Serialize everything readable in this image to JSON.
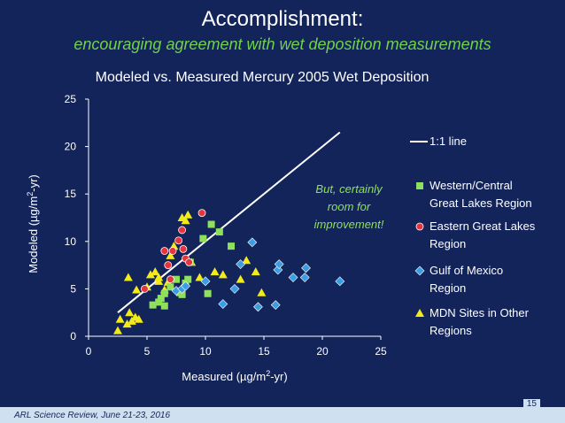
{
  "slide": {
    "title": "Accomplishment:",
    "subtitle": "encouraging agreement with wet deposition measurements",
    "footer": "ARL Science Review, June 21-23, 2016",
    "page_number": "15"
  },
  "colors": {
    "background": "#13245a",
    "subtitle": "#6fd24a",
    "western": "#8fe05a",
    "eastern": "#e8343a",
    "gulf": "#3a9ee6",
    "mdn": "#f2ea1a",
    "line": "#ffffff",
    "annotation_text": "#8fe05a"
  },
  "chart_data": {
    "type": "scatter",
    "title": "Modeled vs. Measured Mercury 2005 Wet Deposition",
    "xlabel_parts": [
      "Measured  (µg/m",
      "2",
      "-yr)"
    ],
    "ylabel_parts": [
      "Modeled (µg/m",
      "2",
      "-yr)"
    ],
    "xlim": [
      0,
      25
    ],
    "ylim": [
      0,
      25
    ],
    "xticks": [
      "0",
      "5",
      "10",
      "15",
      "20",
      "25"
    ],
    "yticks": [
      "0",
      "5",
      "10",
      "15",
      "20",
      "25"
    ],
    "grid": false,
    "legend_position": "right",
    "annotation": [
      "But, certainly",
      "room for",
      "improvement!"
    ],
    "line": {
      "name": "1:1 line",
      "x": [
        2.5,
        21.5
      ],
      "y": [
        2.5,
        21.5
      ]
    },
    "series": [
      {
        "name": [
          "Western/Central",
          "Great Lakes Region"
        ],
        "marker": "square",
        "color_key": "western",
        "points": [
          [
            5.5,
            3.3
          ],
          [
            6.0,
            3.6
          ],
          [
            6.2,
            4.0
          ],
          [
            6.5,
            3.2
          ],
          [
            7.0,
            5.2
          ],
          [
            7.5,
            6.0
          ],
          [
            7.8,
            4.6
          ],
          [
            8.0,
            4.4
          ],
          [
            8.3,
            5.6
          ],
          [
            8.5,
            6.0
          ],
          [
            6.5,
            4.5
          ],
          [
            9.8,
            10.3
          ],
          [
            10.5,
            11.8
          ],
          [
            11.2,
            11.0
          ],
          [
            12.2,
            9.5
          ],
          [
            10.2,
            4.5
          ],
          [
            8.7,
            7.8
          ]
        ]
      },
      {
        "name": [
          "Eastern Great Lakes",
          "Region"
        ],
        "marker": "circle",
        "color_key": "eastern",
        "points": [
          [
            4.8,
            5.0
          ],
          [
            6.8,
            7.5
          ],
          [
            7.2,
            9.0
          ],
          [
            7.7,
            10.1
          ],
          [
            8.0,
            11.2
          ],
          [
            8.1,
            9.2
          ],
          [
            8.3,
            8.2
          ],
          [
            8.6,
            7.8
          ],
          [
            9.7,
            13.0
          ],
          [
            6.5,
            9.0
          ],
          [
            7.0,
            6.0
          ]
        ]
      },
      {
        "name": [
          "Gulf of Mexico",
          "Region"
        ],
        "marker": "diamond",
        "color_key": "gulf",
        "points": [
          [
            7.5,
            4.8
          ],
          [
            8.0,
            5.0
          ],
          [
            8.3,
            5.3
          ],
          [
            10.0,
            5.8
          ],
          [
            11.5,
            3.4
          ],
          [
            12.5,
            5.0
          ],
          [
            13.0,
            7.6
          ],
          [
            14.0,
            9.9
          ],
          [
            14.5,
            3.1
          ],
          [
            16.0,
            3.3
          ],
          [
            16.2,
            7.0
          ],
          [
            16.3,
            7.6
          ],
          [
            17.5,
            6.2
          ],
          [
            18.5,
            6.2
          ],
          [
            18.6,
            7.2
          ],
          [
            21.5,
            5.8
          ]
        ]
      },
      {
        "name": [
          "MDN Sites in Other",
          "Regions"
        ],
        "marker": "triangle",
        "color_key": "mdn",
        "points": [
          [
            2.5,
            0.6
          ],
          [
            2.7,
            1.8
          ],
          [
            3.3,
            1.3
          ],
          [
            3.5,
            2.5
          ],
          [
            3.7,
            1.6
          ],
          [
            4.0,
            2.0
          ],
          [
            4.3,
            1.8
          ],
          [
            3.4,
            6.2
          ],
          [
            4.1,
            4.9
          ],
          [
            5.0,
            5.2
          ],
          [
            5.3,
            6.5
          ],
          [
            5.7,
            6.8
          ],
          [
            6.0,
            6.2
          ],
          [
            6.5,
            4.9
          ],
          [
            6.8,
            5.7
          ],
          [
            7.0,
            8.5
          ],
          [
            7.3,
            9.5
          ],
          [
            8.0,
            12.5
          ],
          [
            8.3,
            12.2
          ],
          [
            8.5,
            12.8
          ],
          [
            8.8,
            7.8
          ],
          [
            9.5,
            6.2
          ],
          [
            10.8,
            6.8
          ],
          [
            11.5,
            6.5
          ],
          [
            13.0,
            6.0
          ],
          [
            13.5,
            8.0
          ],
          [
            14.3,
            6.8
          ],
          [
            14.8,
            4.6
          ],
          [
            6.0,
            5.8
          ]
        ]
      }
    ]
  }
}
